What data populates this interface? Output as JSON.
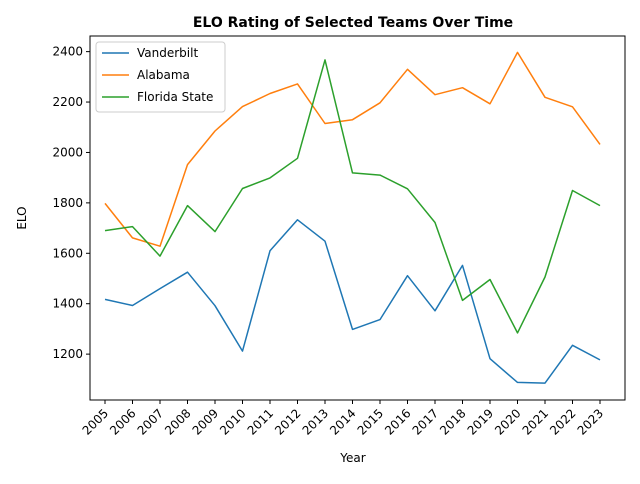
{
  "chart_data": {
    "type": "line",
    "title": "ELO Rating of Selected Teams Over Time",
    "xlabel": "Year",
    "ylabel": "ELO",
    "x": [
      "2005",
      "2006",
      "2007",
      "2008",
      "2009",
      "2010",
      "2011",
      "2012",
      "2013",
      "2014",
      "2015",
      "2016",
      "2017",
      "2018",
      "2019",
      "2020",
      "2021",
      "2022",
      "2023"
    ],
    "ylim": [
      1018,
      2462
    ],
    "yticks": [
      1200,
      1400,
      1600,
      1800,
      2000,
      2200,
      2400
    ],
    "grid": false,
    "legend": "top-left",
    "series": [
      {
        "name": "Vanderbilt",
        "color": "#1f77b4",
        "values": [
          1417,
          1393,
          1460,
          1525,
          1392,
          1212,
          1610,
          1733,
          1648,
          1298,
          1337,
          1511,
          1372,
          1552,
          1182,
          1088,
          1085,
          1235,
          1177
        ]
      },
      {
        "name": "Alabama",
        "color": "#ff7f0e",
        "values": [
          1798,
          1661,
          1628,
          1952,
          2085,
          2182,
          2234,
          2272,
          2115,
          2130,
          2197,
          2330,
          2229,
          2257,
          2193,
          2397,
          2219,
          2181,
          2032
        ]
      },
      {
        "name": "Florida State",
        "color": "#2ca02c",
        "values": [
          1690,
          1706,
          1589,
          1789,
          1686,
          1857,
          1899,
          1977,
          2367,
          1919,
          1910,
          1856,
          1722,
          1413,
          1496,
          1284,
          1506,
          1849,
          1789
        ]
      }
    ]
  }
}
